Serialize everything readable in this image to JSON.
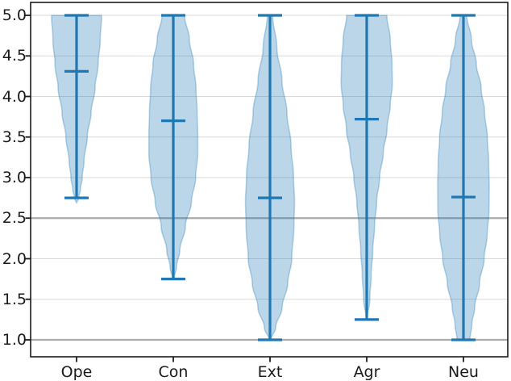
{
  "figure": {
    "accent_color": "#1f77b4",
    "violin_fill_color": "#1f77b4",
    "violin_fill_opacity": 0.3,
    "grid_light_color": "#d9d9d9",
    "grid_dark_color": "#ababab",
    "frame_color": "#1c1c1c",
    "text_color": "#1a1a1a",
    "background": "#ffffff"
  },
  "chart_data": {
    "type": "violin",
    "title": "",
    "xlabel": "",
    "ylabel": "",
    "categories": [
      "Ope",
      "Con",
      "Ext",
      "Agr",
      "Neu"
    ],
    "y_tick_labels": [
      "5.0",
      "4.5",
      "4.0",
      "3.5",
      "3.0",
      "2.5",
      "2.0",
      "1.5",
      "1.0"
    ],
    "y_tick_values": [
      5.0,
      4.5,
      4.0,
      3.5,
      3.0,
      2.5,
      2.0,
      1.5,
      1.0
    ],
    "ylim": [
      0.79,
      5.16
    ],
    "grid": "on",
    "gridlines": {
      "light": [
        5.0,
        4.5,
        4.0,
        3.5,
        3.0,
        2.0,
        1.5
      ],
      "dark": [
        2.5,
        1.0
      ]
    },
    "legend": null,
    "series": [
      {
        "name": "Ope",
        "min": 2.75,
        "max": 5.0,
        "mean": 4.31,
        "profile": [
          [
            5.0,
            0.262
          ],
          [
            4.7,
            0.248
          ],
          [
            4.4,
            0.226
          ],
          [
            4.1,
            0.193
          ],
          [
            3.8,
            0.152
          ],
          [
            3.5,
            0.112
          ],
          [
            3.2,
            0.078
          ],
          [
            3.0,
            0.059
          ],
          [
            2.85,
            0.04
          ],
          [
            2.75,
            0.022
          ],
          [
            2.68,
            0.0
          ]
        ]
      },
      {
        "name": "Con",
        "min": 1.75,
        "max": 5.0,
        "mean": 3.7,
        "profile": [
          [
            5.0,
            0.118
          ],
          [
            4.7,
            0.169
          ],
          [
            4.4,
            0.213
          ],
          [
            4.1,
            0.238
          ],
          [
            3.8,
            0.25
          ],
          [
            3.5,
            0.256
          ],
          [
            3.3,
            0.256
          ],
          [
            3.0,
            0.234
          ],
          [
            2.7,
            0.19
          ],
          [
            2.4,
            0.127
          ],
          [
            2.1,
            0.068
          ],
          [
            1.9,
            0.034
          ],
          [
            1.75,
            0.008
          ]
        ]
      },
      {
        "name": "Ext",
        "min": 1.0,
        "max": 5.0,
        "mean": 2.75,
        "profile": [
          [
            5.0,
            0.028
          ],
          [
            4.6,
            0.072
          ],
          [
            4.2,
            0.125
          ],
          [
            3.8,
            0.177
          ],
          [
            3.4,
            0.22
          ],
          [
            3.0,
            0.247
          ],
          [
            2.7,
            0.257
          ],
          [
            2.4,
            0.251
          ],
          [
            2.0,
            0.228
          ],
          [
            1.7,
            0.186
          ],
          [
            1.4,
            0.127
          ],
          [
            1.15,
            0.059
          ],
          [
            1.0,
            0.01
          ]
        ]
      },
      {
        "name": "Agr",
        "min": 1.25,
        "max": 5.0,
        "mean": 3.72,
        "profile": [
          [
            5.0,
            0.211
          ],
          [
            4.7,
            0.247
          ],
          [
            4.4,
            0.265
          ],
          [
            4.15,
            0.268
          ],
          [
            3.9,
            0.247
          ],
          [
            3.6,
            0.213
          ],
          [
            3.3,
            0.173
          ],
          [
            3.0,
            0.135
          ],
          [
            2.7,
            0.104
          ],
          [
            2.4,
            0.082
          ],
          [
            2.1,
            0.063
          ],
          [
            1.8,
            0.047
          ],
          [
            1.5,
            0.032
          ],
          [
            1.25,
            0.005
          ]
        ]
      },
      {
        "name": "Neu",
        "min": 1.0,
        "max": 5.0,
        "mean": 2.76,
        "profile": [
          [
            5.0,
            0.034
          ],
          [
            4.7,
            0.084
          ],
          [
            4.4,
            0.135
          ],
          [
            4.1,
            0.186
          ],
          [
            3.8,
            0.222
          ],
          [
            3.5,
            0.25
          ],
          [
            3.2,
            0.264
          ],
          [
            2.9,
            0.27
          ],
          [
            2.6,
            0.268
          ],
          [
            2.3,
            0.249
          ],
          [
            2.0,
            0.217
          ],
          [
            1.7,
            0.169
          ],
          [
            1.4,
            0.118
          ],
          [
            1.2,
            0.089
          ],
          [
            1.0,
            0.068
          ]
        ]
      }
    ]
  }
}
